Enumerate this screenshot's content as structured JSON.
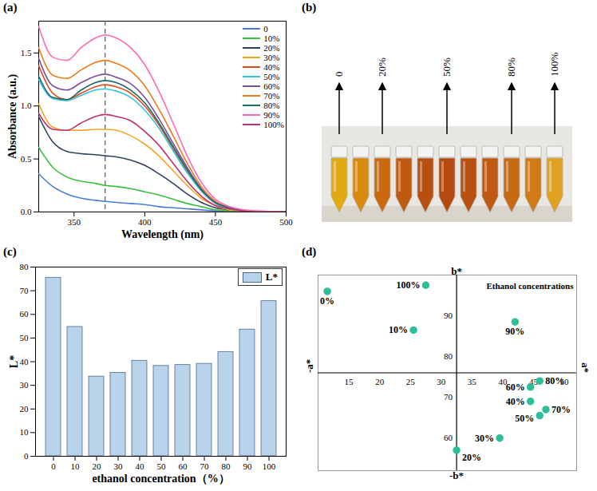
{
  "chart_data": [
    {
      "panel": "(a)",
      "type": "line",
      "x_label": "Wavelength (nm)",
      "y_label": "Absorbance (a.u.)",
      "x": [
        325,
        335,
        345,
        355,
        365,
        372,
        380,
        390,
        400,
        410,
        420,
        430,
        440,
        450,
        460,
        470,
        480,
        500
      ],
      "series": [
        {
          "name": "0",
          "color": "#4a7be0",
          "values": [
            0.36,
            0.24,
            0.17,
            0.13,
            0.11,
            0.1,
            0.09,
            0.08,
            0.07,
            0.05,
            0.04,
            0.03,
            0.02,
            0.01,
            0.01,
            0,
            0,
            0
          ]
        },
        {
          "name": "10%",
          "color": "#3fbf3f",
          "values": [
            0.61,
            0.42,
            0.33,
            0.29,
            0.27,
            0.25,
            0.24,
            0.22,
            0.19,
            0.16,
            0.12,
            0.08,
            0.05,
            0.02,
            0.01,
            0,
            0,
            0
          ]
        },
        {
          "name": "20%",
          "color": "#2f4060",
          "values": [
            0.9,
            0.66,
            0.57,
            0.55,
            0.54,
            0.53,
            0.52,
            0.49,
            0.44,
            0.36,
            0.27,
            0.17,
            0.09,
            0.04,
            0.02,
            0.01,
            0,
            0
          ]
        },
        {
          "name": "30%",
          "color": "#f5a623",
          "values": [
            1.02,
            0.8,
            0.77,
            0.77,
            0.78,
            0.78,
            0.77,
            0.72,
            0.64,
            0.53,
            0.39,
            0.25,
            0.13,
            0.06,
            0.02,
            0.01,
            0,
            0
          ]
        },
        {
          "name": "40%",
          "color": "#e04a1a",
          "values": [
            1.38,
            1.12,
            1.06,
            1.12,
            1.18,
            1.2,
            1.18,
            1.12,
            1.0,
            0.82,
            0.6,
            0.38,
            0.2,
            0.08,
            0.03,
            0.01,
            0,
            0
          ]
        },
        {
          "name": "50%",
          "color": "#33c4e0",
          "values": [
            1.25,
            1.07,
            1.05,
            1.1,
            1.15,
            1.16,
            1.14,
            1.08,
            0.96,
            0.79,
            0.58,
            0.37,
            0.2,
            0.08,
            0.03,
            0.01,
            0,
            0
          ]
        },
        {
          "name": "60%",
          "color": "#7a4fa0",
          "values": [
            1.45,
            1.19,
            1.15,
            1.22,
            1.28,
            1.3,
            1.27,
            1.21,
            1.08,
            0.88,
            0.65,
            0.42,
            0.22,
            0.09,
            0.04,
            0.01,
            0,
            0
          ]
        },
        {
          "name": "70%",
          "color": "#f07a1a",
          "values": [
            1.55,
            1.29,
            1.26,
            1.34,
            1.41,
            1.43,
            1.4,
            1.33,
            1.19,
            0.97,
            0.72,
            0.46,
            0.24,
            0.1,
            0.04,
            0.01,
            0,
            0
          ]
        },
        {
          "name": "80%",
          "color": "#1a6a6a",
          "values": [
            1.28,
            1.08,
            1.06,
            1.15,
            1.22,
            1.24,
            1.22,
            1.15,
            1.03,
            0.84,
            0.62,
            0.4,
            0.21,
            0.09,
            0.04,
            0.01,
            0,
            0
          ]
        },
        {
          "name": "90%",
          "color": "#ff69b4",
          "values": [
            1.75,
            1.46,
            1.43,
            1.55,
            1.64,
            1.67,
            1.64,
            1.55,
            1.39,
            1.14,
            0.84,
            0.53,
            0.28,
            0.12,
            0.05,
            0.02,
            0.01,
            0
          ]
        },
        {
          "name": "100%",
          "color": "#c0306e",
          "values": [
            0.93,
            0.78,
            0.77,
            0.84,
            0.9,
            0.92,
            0.9,
            0.86,
            0.76,
            0.63,
            0.46,
            0.29,
            0.15,
            0.06,
            0.03,
            0.01,
            0,
            0
          ]
        }
      ],
      "xlim": [
        325,
        500
      ],
      "xticks": [
        350,
        400,
        450,
        500
      ],
      "ylim": [
        0,
        1.8
      ],
      "yticks": [
        {
          "value": 0,
          "label": "0.0"
        },
        {
          "value": 0.5,
          "label": "0.5"
        },
        {
          "value": 1,
          "label": "1.0"
        },
        {
          "value": 1.5,
          "label": "1.5"
        }
      ],
      "vline": 372,
      "legend": "top-right"
    },
    {
      "panel": "(b)",
      "type": "photo",
      "categories": [
        "0",
        null,
        "20%",
        null,
        null,
        "50%",
        null,
        null,
        "80%",
        null,
        "100%"
      ],
      "colors": [
        "#e0aa10",
        "#d98a10",
        "#c96a10",
        "#c05a10",
        "#b84e10",
        "#b54a10",
        "#b85010",
        "#c05a12",
        "#c86a14",
        "#d07a18",
        "#e0a020"
      ]
    },
    {
      "panel": "(c)",
      "type": "bar",
      "x_label": "ethanol concentration（%）",
      "y_label": "L*",
      "categories": [
        "0",
        "10",
        "20",
        "30",
        "40",
        "50",
        "60",
        "70",
        "80",
        "90",
        "100"
      ],
      "series": [
        {
          "name": "L*",
          "color": "#b9d3ea",
          "values": [
            75.5,
            54.7,
            33.7,
            35.3,
            40.4,
            38.2,
            38.6,
            39.1,
            44.1,
            53.6,
            65.6
          ]
        }
      ],
      "ylim": [
        0,
        80
      ],
      "yticks": [
        0,
        10,
        20,
        30,
        40,
        50,
        60,
        70,
        80
      ],
      "legend": "top-right"
    },
    {
      "panel": "(d)",
      "type": "scatter",
      "title": "Ethanol concentrations",
      "labels": [
        "0%",
        "10%",
        "20%",
        "30%",
        "40%",
        "50%",
        "60%",
        "70%",
        "80%",
        "90%",
        "100%"
      ],
      "x": [
        11.5,
        25.5,
        32.5,
        39.5,
        44.5,
        46,
        44.5,
        47,
        46,
        42,
        27.5
      ],
      "values": [
        96,
        86.5,
        57,
        60,
        69,
        65.5,
        72.5,
        67,
        74,
        88.5,
        97.5
      ],
      "color": "#2ebf9a",
      "xlim": [
        10,
        52
      ],
      "xticks": [
        15,
        20,
        25,
        30,
        35,
        40,
        45,
        50
      ],
      "ylim": [
        52,
        100
      ],
      "yticks": [
        60,
        70,
        80,
        90
      ],
      "axis_labels": {
        "top": "b*",
        "bottom": "-b*",
        "left": "-a*",
        "right": "a*"
      },
      "axis_origin": [
        32.5,
        76
      ]
    }
  ]
}
